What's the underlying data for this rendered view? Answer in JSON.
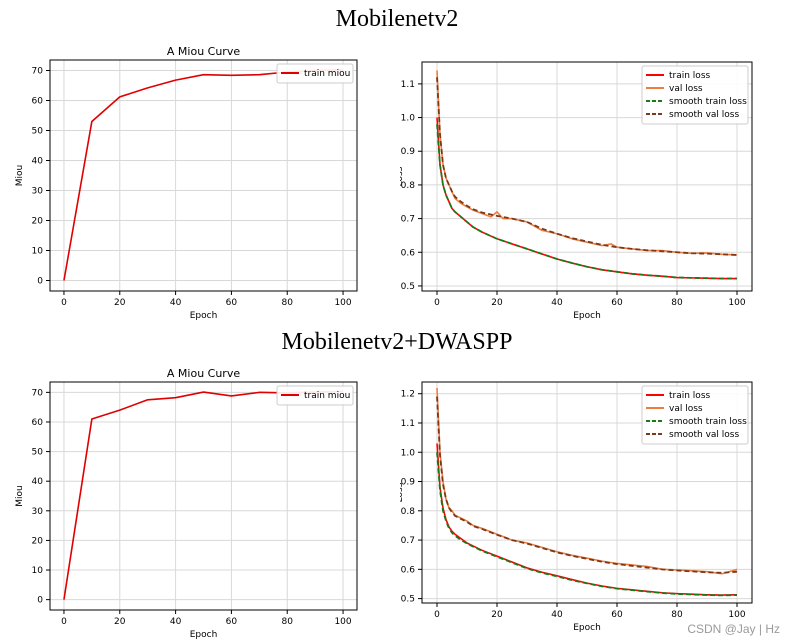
{
  "sections": [
    {
      "title": "Mobilenetv2"
    },
    {
      "title": "Mobilenetv2+DWASPP"
    }
  ],
  "watermark": "CSDN @Jay | Hz",
  "colors": {
    "miou_line": "#e00000",
    "train_loss": "#ff0000",
    "val_loss": "#f07c3e",
    "smooth_train": "#1a7a1a",
    "smooth_val": "#7a3a1a",
    "grid": "#d8d8d8",
    "axis": "#000000"
  },
  "chart_data": [
    {
      "type": "line",
      "title": "A Miou Curve",
      "xlabel": "Epoch",
      "ylabel": "Miou",
      "xlim": [
        -5,
        105
      ],
      "ylim": [
        -3.5,
        73.5
      ],
      "xticks": [
        0,
        20,
        40,
        60,
        80,
        100
      ],
      "yticks": [
        0,
        10,
        20,
        30,
        40,
        50,
        60,
        70
      ],
      "grid": true,
      "legend": "top-right",
      "series": [
        {
          "name": "train miou",
          "key": "miou_line",
          "dash": false,
          "x": [
            0,
            10,
            20,
            30,
            40,
            50,
            60,
            70,
            80,
            90,
            100
          ],
          "y": [
            0,
            53,
            61.2,
            64.2,
            66.8,
            68.6,
            68.4,
            68.6,
            69.5,
            70.0,
            70.2
          ]
        }
      ]
    },
    {
      "type": "line",
      "title": "",
      "xlabel": "Epoch",
      "ylabel": "Loss",
      "xlim": [
        -5,
        105
      ],
      "ylim": [
        0.485,
        1.165
      ],
      "xticks": [
        0,
        20,
        40,
        60,
        80,
        100
      ],
      "yticks": [
        0.5,
        0.6,
        0.7,
        0.8,
        0.9,
        1.0,
        1.1
      ],
      "grid": true,
      "legend": "top-right",
      "series": [
        {
          "name": "train loss",
          "key": "train_loss",
          "dash": false,
          "x": [
            0,
            1,
            2,
            3,
            4,
            5,
            6,
            8,
            10,
            12,
            15,
            20,
            25,
            30,
            35,
            40,
            45,
            50,
            55,
            60,
            65,
            70,
            75,
            80,
            85,
            90,
            95,
            100
          ],
          "y": [
            1.0,
            0.86,
            0.8,
            0.77,
            0.75,
            0.73,
            0.72,
            0.705,
            0.69,
            0.675,
            0.66,
            0.64,
            0.625,
            0.61,
            0.595,
            0.58,
            0.568,
            0.557,
            0.548,
            0.542,
            0.536,
            0.532,
            0.529,
            0.525,
            0.524,
            0.523,
            0.522,
            0.522
          ]
        },
        {
          "name": "val loss",
          "key": "val_loss",
          "dash": false,
          "x": [
            0,
            1,
            2,
            3,
            4,
            5,
            6,
            8,
            10,
            12,
            15,
            18,
            20,
            22,
            25,
            30,
            35,
            40,
            45,
            50,
            55,
            58,
            60,
            65,
            70,
            75,
            80,
            85,
            90,
            95,
            100
          ],
          "y": [
            1.14,
            0.95,
            0.86,
            0.82,
            0.8,
            0.78,
            0.76,
            0.745,
            0.735,
            0.725,
            0.715,
            0.705,
            0.72,
            0.7,
            0.7,
            0.69,
            0.665,
            0.655,
            0.64,
            0.63,
            0.62,
            0.625,
            0.615,
            0.61,
            0.605,
            0.605,
            0.6,
            0.597,
            0.598,
            0.594,
            0.592
          ]
        },
        {
          "name": "smooth train loss",
          "key": "smooth_train",
          "dash": true,
          "x": [
            0,
            1,
            2,
            3,
            4,
            5,
            6,
            8,
            10,
            12,
            15,
            20,
            25,
            30,
            35,
            40,
            45,
            50,
            55,
            60,
            65,
            70,
            75,
            80,
            85,
            90,
            95,
            100
          ],
          "y": [
            0.98,
            0.86,
            0.8,
            0.77,
            0.75,
            0.73,
            0.72,
            0.705,
            0.69,
            0.675,
            0.66,
            0.64,
            0.625,
            0.61,
            0.595,
            0.58,
            0.568,
            0.557,
            0.548,
            0.542,
            0.536,
            0.532,
            0.529,
            0.525,
            0.524,
            0.523,
            0.522,
            0.522
          ]
        },
        {
          "name": "smooth val loss",
          "key": "smooth_val",
          "dash": true,
          "x": [
            0,
            1,
            2,
            3,
            4,
            5,
            6,
            8,
            10,
            12,
            15,
            20,
            25,
            30,
            35,
            40,
            45,
            50,
            55,
            60,
            65,
            70,
            75,
            80,
            85,
            90,
            95,
            100
          ],
          "y": [
            1.12,
            0.95,
            0.86,
            0.82,
            0.8,
            0.78,
            0.765,
            0.75,
            0.738,
            0.728,
            0.718,
            0.708,
            0.7,
            0.69,
            0.67,
            0.655,
            0.642,
            0.632,
            0.622,
            0.615,
            0.61,
            0.606,
            0.603,
            0.6,
            0.597,
            0.596,
            0.594,
            0.592
          ]
        }
      ]
    },
    {
      "type": "line",
      "title": "A Miou Curve",
      "xlabel": "Epoch",
      "ylabel": "Miou",
      "xlim": [
        -5,
        105
      ],
      "ylim": [
        -3.5,
        73.5
      ],
      "xticks": [
        0,
        20,
        40,
        60,
        80,
        100
      ],
      "yticks": [
        0,
        10,
        20,
        30,
        40,
        50,
        60,
        70
      ],
      "grid": true,
      "legend": "top-right",
      "series": [
        {
          "name": "train miou",
          "key": "miou_line",
          "dash": false,
          "x": [
            0,
            10,
            20,
            30,
            40,
            50,
            60,
            70,
            80,
            90,
            100
          ],
          "y": [
            0,
            61,
            64,
            67.5,
            68.2,
            70.1,
            68.8,
            70.0,
            69.8,
            70.1,
            70.3
          ]
        }
      ]
    },
    {
      "type": "line",
      "title": "",
      "xlabel": "Epoch",
      "ylabel": "Loss",
      "xlim": [
        -5,
        105
      ],
      "ylim": [
        0.485,
        1.24
      ],
      "xticks": [
        0,
        20,
        40,
        60,
        80,
        100
      ],
      "yticks": [
        0.5,
        0.6,
        0.7,
        0.8,
        0.9,
        1.0,
        1.1,
        1.2
      ],
      "grid": true,
      "legend": "top-right",
      "series": [
        {
          "name": "train loss",
          "key": "train_loss",
          "dash": false,
          "x": [
            0,
            1,
            2,
            3,
            4,
            5,
            6,
            8,
            10,
            12,
            15,
            20,
            25,
            30,
            35,
            40,
            45,
            50,
            55,
            60,
            65,
            70,
            75,
            80,
            85,
            90,
            95,
            100
          ],
          "y": [
            1.03,
            0.88,
            0.81,
            0.77,
            0.745,
            0.73,
            0.72,
            0.705,
            0.69,
            0.68,
            0.665,
            0.645,
            0.625,
            0.605,
            0.59,
            0.578,
            0.565,
            0.553,
            0.543,
            0.535,
            0.53,
            0.525,
            0.52,
            0.517,
            0.515,
            0.513,
            0.512,
            0.513
          ]
        },
        {
          "name": "val loss",
          "key": "val_loss",
          "dash": false,
          "x": [
            0,
            1,
            2,
            3,
            4,
            5,
            6,
            8,
            10,
            12,
            15,
            20,
            25,
            30,
            35,
            40,
            45,
            50,
            55,
            60,
            65,
            70,
            75,
            80,
            85,
            90,
            95,
            100
          ],
          "y": [
            1.22,
            1.0,
            0.9,
            0.84,
            0.81,
            0.8,
            0.785,
            0.775,
            0.765,
            0.75,
            0.74,
            0.72,
            0.7,
            0.69,
            0.675,
            0.66,
            0.648,
            0.638,
            0.628,
            0.62,
            0.615,
            0.61,
            0.6,
            0.598,
            0.595,
            0.592,
            0.585,
            0.6
          ]
        },
        {
          "name": "smooth train loss",
          "key": "smooth_train",
          "dash": true,
          "x": [
            0,
            1,
            2,
            3,
            4,
            5,
            6,
            8,
            10,
            12,
            15,
            20,
            25,
            30,
            35,
            40,
            45,
            50,
            55,
            60,
            65,
            70,
            75,
            80,
            85,
            90,
            95,
            100
          ],
          "y": [
            1.0,
            0.87,
            0.8,
            0.765,
            0.74,
            0.725,
            0.715,
            0.7,
            0.688,
            0.678,
            0.663,
            0.643,
            0.623,
            0.603,
            0.588,
            0.576,
            0.563,
            0.552,
            0.542,
            0.534,
            0.529,
            0.524,
            0.519,
            0.516,
            0.514,
            0.512,
            0.511,
            0.512
          ]
        },
        {
          "name": "smooth val loss",
          "key": "smooth_val",
          "dash": true,
          "x": [
            0,
            1,
            2,
            3,
            4,
            5,
            6,
            8,
            10,
            12,
            15,
            20,
            25,
            30,
            35,
            40,
            45,
            50,
            55,
            60,
            65,
            70,
            75,
            80,
            85,
            90,
            95,
            100
          ],
          "y": [
            1.19,
            0.99,
            0.89,
            0.84,
            0.81,
            0.795,
            0.783,
            0.772,
            0.762,
            0.748,
            0.738,
            0.718,
            0.7,
            0.688,
            0.673,
            0.658,
            0.646,
            0.636,
            0.626,
            0.618,
            0.612,
            0.606,
            0.6,
            0.596,
            0.593,
            0.59,
            0.588,
            0.592
          ]
        }
      ]
    }
  ]
}
